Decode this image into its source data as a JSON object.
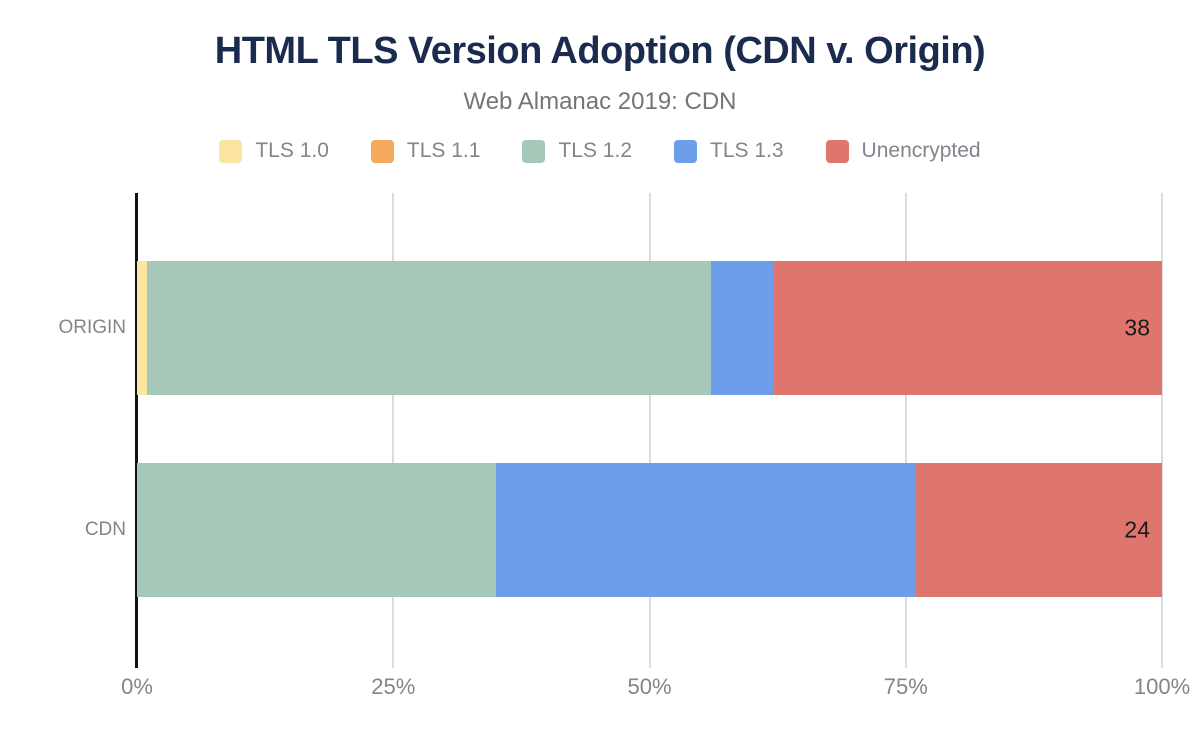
{
  "header": {
    "title": "HTML TLS Version Adoption (CDN v. Origin)",
    "subtitle": "Web Almanac 2019: CDN"
  },
  "colors": {
    "background": "#FFFFFF",
    "title": "#1B2B4E",
    "subtitle": "#757575",
    "axis_text": "#80868B",
    "category_text": "#80868B",
    "gridline": "#DADCE0",
    "axis_line": "#111111",
    "data_label": "#1A1A1A"
  },
  "legend": {
    "position": "top",
    "items": [
      {
        "label": "TLS 1.0",
        "color": "#FBE5A0"
      },
      {
        "label": "TLS 1.1",
        "color": "#F4A95E"
      },
      {
        "label": "TLS 1.2",
        "color": "#A5C8B8"
      },
      {
        "label": "TLS 1.3",
        "color": "#6D9EEB"
      },
      {
        "label": "Unencrypted",
        "color": "#DF766D"
      }
    ]
  },
  "chart_data": {
    "type": "bar",
    "orientation": "horizontal",
    "stacked": true,
    "title": "HTML TLS Version Adoption (CDN v. Origin)",
    "subtitle": "Web Almanac 2019: CDN",
    "categories": [
      "ORIGIN",
      "CDN"
    ],
    "series": [
      {
        "name": "TLS 1.0",
        "color": "#FBE5A0",
        "values": [
          1,
          0
        ]
      },
      {
        "name": "TLS 1.1",
        "color": "#F4A95E",
        "values": [
          0,
          0
        ]
      },
      {
        "name": "TLS 1.2",
        "color": "#A5C8B8",
        "values": [
          55,
          35
        ]
      },
      {
        "name": "TLS 1.3",
        "color": "#6D9EEB",
        "values": [
          6,
          41
        ]
      },
      {
        "name": "Unencrypted",
        "color": "#DF766D",
        "values": [
          38,
          24
        ]
      }
    ],
    "data_labels": [
      {
        "category": "ORIGIN",
        "series": "Unencrypted",
        "text": "38"
      },
      {
        "category": "CDN",
        "series": "Unencrypted",
        "text": "24"
      }
    ],
    "xlabel": "",
    "ylabel": "",
    "xlim": [
      0,
      100
    ],
    "x_ticks": [
      {
        "label": "0%",
        "value": 0
      },
      {
        "label": "25%",
        "value": 25
      },
      {
        "label": "50%",
        "value": 50
      },
      {
        "label": "75%",
        "value": 75
      },
      {
        "label": "100%",
        "value": 100
      }
    ],
    "grid": true,
    "legend_position": "top"
  }
}
